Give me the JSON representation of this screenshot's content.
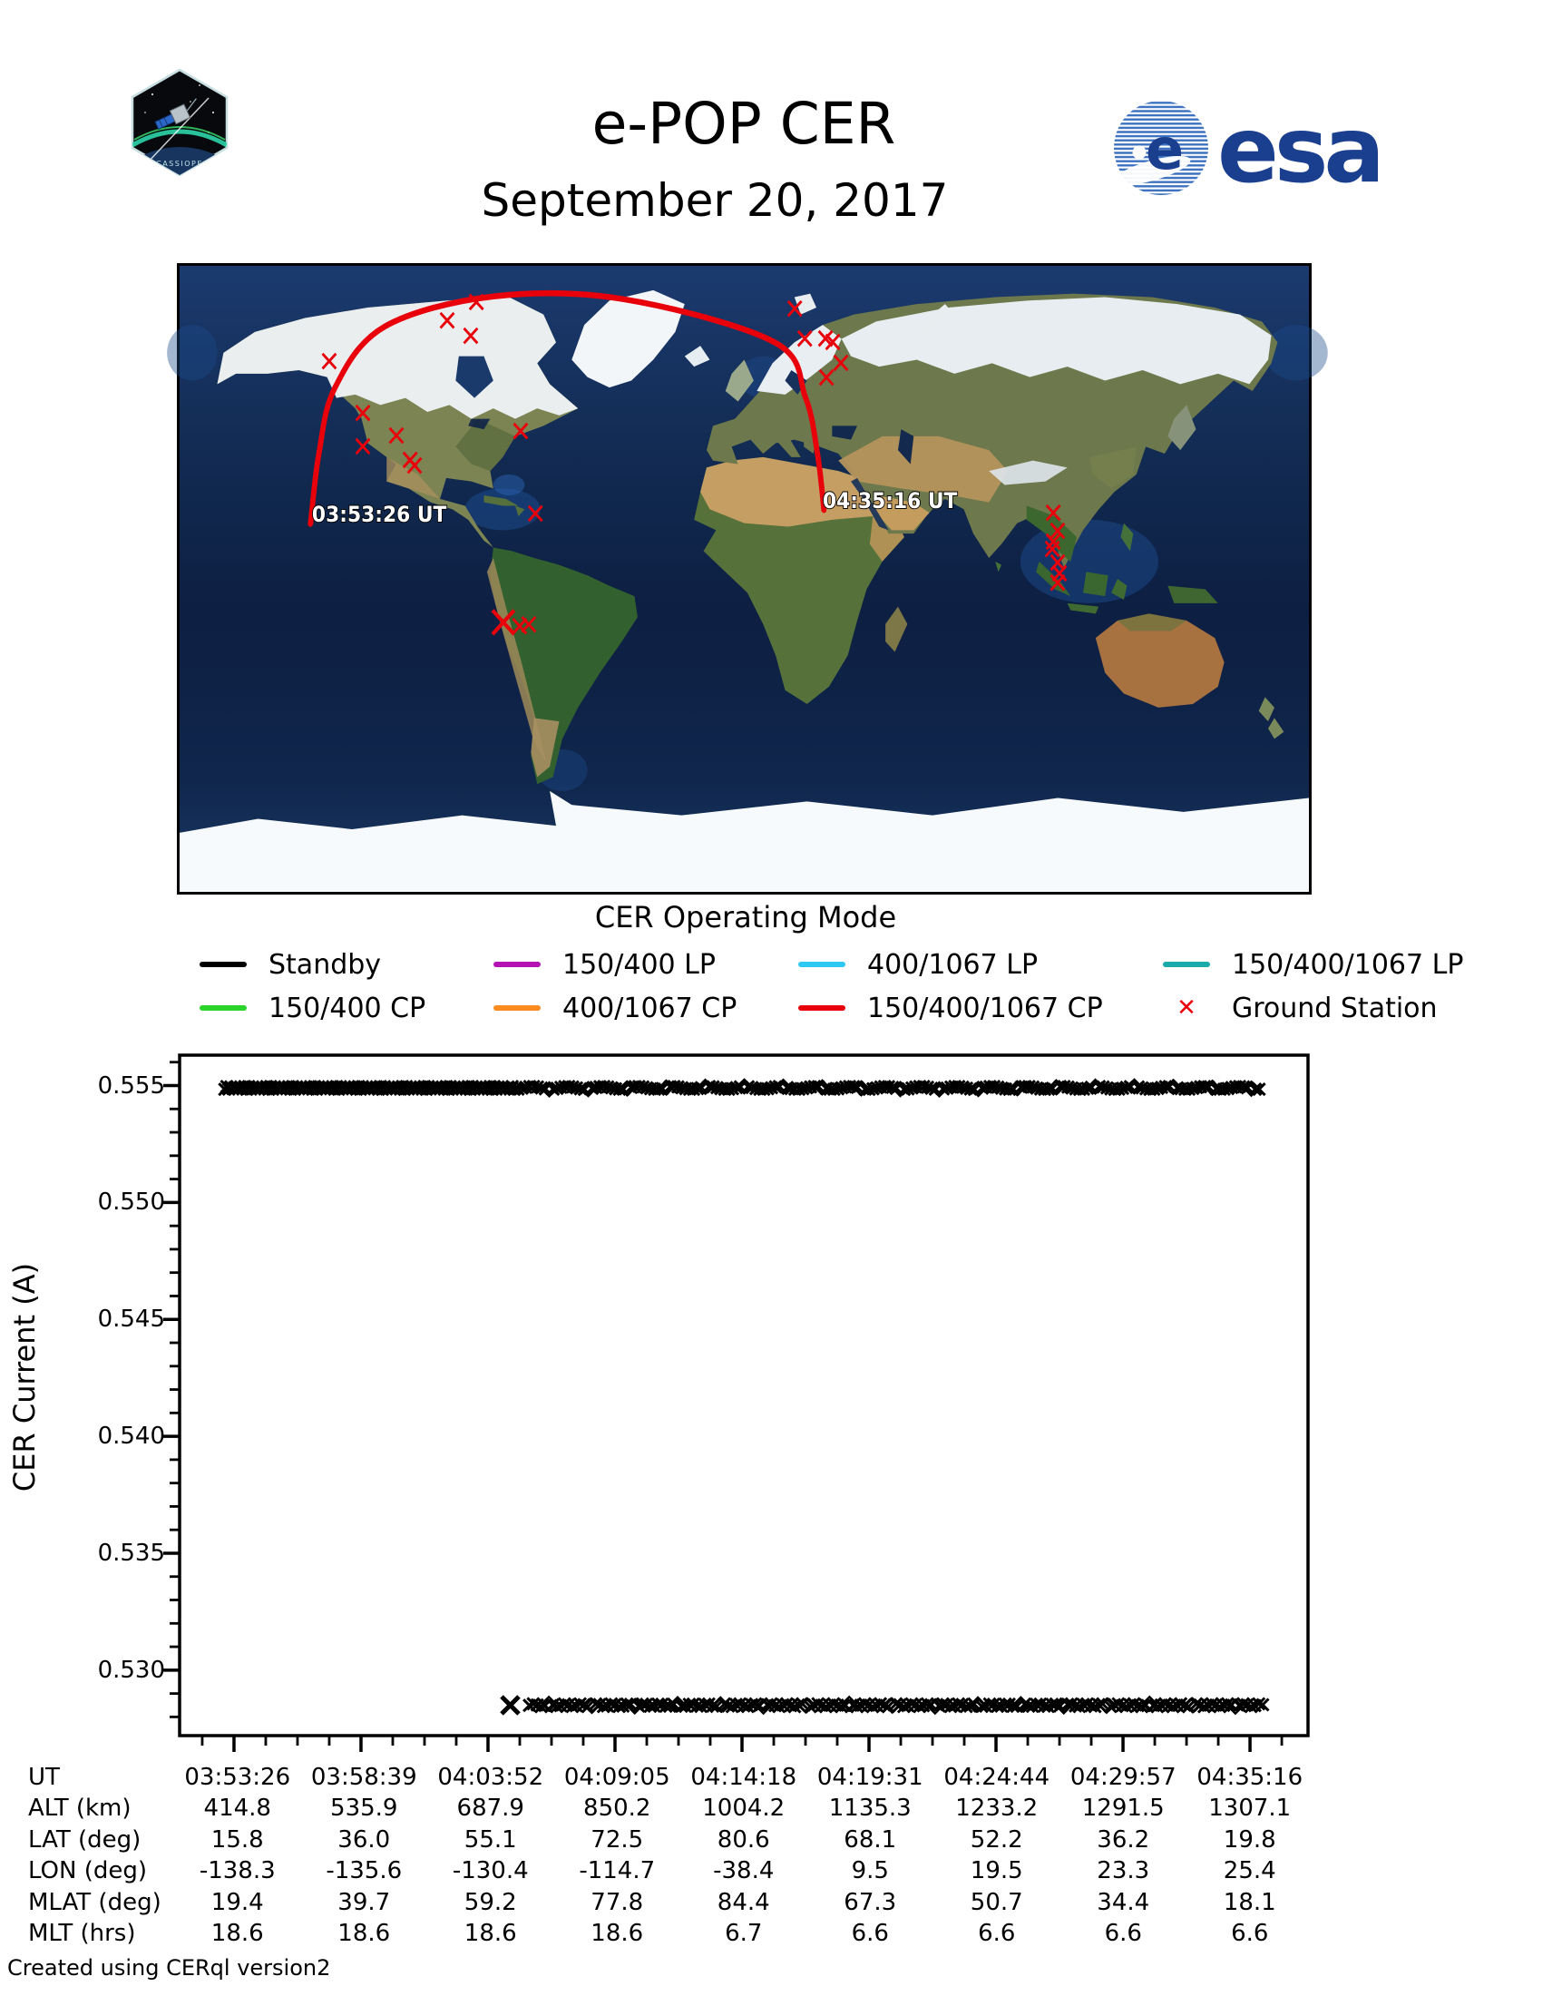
{
  "header": {
    "title": "e-POP CER",
    "subtitle": "September 20, 2017",
    "cassiope_label": "CASSIOPE",
    "esa_label": "esa"
  },
  "map": {
    "start_label": "03:53:26 UT",
    "end_label": "04:35:16 UT",
    "track_color": "#e8000b",
    "station_color": "#e8000b",
    "track_points": [
      [
        41.7,
        74.2
      ],
      [
        44.4,
        54.0
      ],
      [
        49.6,
        34.9
      ],
      [
        65.3,
        17.5
      ],
      [
        100.0,
        8.8
      ],
      [
        141.6,
        9.6
      ],
      [
        189.5,
        21.9
      ],
      [
        199.5,
        37.8
      ],
      [
        203.3,
        53.8
      ],
      [
        205.4,
        70.2
      ]
    ],
    "ground_stations": [
      [
        47.7,
        27.4
      ],
      [
        85.3,
        15.7
      ],
      [
        92.8,
        20.1
      ],
      [
        94.6,
        10.4
      ],
      [
        58.4,
        42.3
      ],
      [
        69.1,
        48.8
      ],
      [
        58.4,
        51.9
      ],
      [
        73.5,
        55.8
      ],
      [
        74.9,
        57.4
      ],
      [
        108.7,
        47.5
      ],
      [
        113.4,
        71.2
      ],
      [
        103.2,
        102.5,
        1.6
      ],
      [
        108.4,
        103.6
      ],
      [
        111.3,
        103.1
      ],
      [
        196.1,
        12.3
      ],
      [
        199.3,
        20.9
      ],
      [
        205.9,
        20.9
      ],
      [
        208.2,
        21.9
      ],
      [
        210.8,
        27.9
      ],
      [
        206.2,
        32.1
      ],
      [
        278.5,
        71.0
      ],
      [
        279.9,
        76.2
      ],
      [
        278.5,
        79.3
      ],
      [
        278.2,
        81.4
      ],
      [
        279.9,
        85.3
      ],
      [
        280.5,
        88.4
      ],
      [
        279.9,
        91.1
      ]
    ]
  },
  "legend": {
    "title": "CER Operating Mode",
    "items": [
      {
        "label": "Standby",
        "color": "#000000",
        "marker": "line"
      },
      {
        "label": "150/400 LP",
        "color": "#b412b4",
        "marker": "line"
      },
      {
        "label": "400/1067 LP",
        "color": "#2fc8f2",
        "marker": "line"
      },
      {
        "label": "150/400/1067 LP",
        "color": "#1ca9a9",
        "marker": "line"
      },
      {
        "label": "150/400 CP",
        "color": "#2bd42b",
        "marker": "line"
      },
      {
        "label": "400/1067 CP",
        "color": "#fb8b1e",
        "marker": "line"
      },
      {
        "label": "150/400/1067 CP",
        "color": "#e8000b",
        "marker": "line"
      },
      {
        "label": "Ground Station",
        "color": "#e8000b",
        "marker": "x"
      }
    ]
  },
  "chart_data": {
    "type": "scatter",
    "title": "",
    "xlabel": "",
    "ylabel": "CER Current (A)",
    "marker": "x",
    "marker_color": "#000000",
    "ylim": [
      0.5272,
      0.5563
    ],
    "ytick_values": [
      0.555,
      0.55,
      0.545,
      0.54,
      0.535,
      0.53
    ],
    "ytick_labels": [
      "0.555",
      "0.550",
      "0.545",
      "0.540",
      "0.535",
      "0.530"
    ],
    "y_minor_step": 0.001,
    "x_tick_labels": [
      "03:53:26",
      "03:58:39",
      "04:03:52",
      "04:09:05",
      "04:14:18",
      "04:19:31",
      "04:24:44",
      "04:29:57",
      "04:35:16"
    ],
    "x_first_tick_frac": 0.0482,
    "x_last_tick_frac": 0.9486,
    "x_minor_per_major": 4,
    "grid": false,
    "series": [
      {
        "name": "upper-band-standby",
        "current_a": 0.5549,
        "x_start_frac": 0.04,
        "x_end_frac": 0.96,
        "dense_until_frac": 0.295
      },
      {
        "name": "lower-band-standby",
        "current_a": 0.5285,
        "x_start_frac": 0.31,
        "x_end_frac": 0.96,
        "lone_point_frac": 0.293
      }
    ]
  },
  "table": {
    "rows": [
      {
        "label": "UT",
        "values": [
          "03:53:26",
          "03:58:39",
          "04:03:52",
          "04:09:05",
          "04:14:18",
          "04:19:31",
          "04:24:44",
          "04:29:57",
          "04:35:16"
        ]
      },
      {
        "label": "ALT (km)",
        "values": [
          "414.8",
          "535.9",
          "687.9",
          "850.2",
          "1004.2",
          "1135.3",
          "1233.2",
          "1291.5",
          "1307.1"
        ]
      },
      {
        "label": "LAT (deg)",
        "values": [
          "15.8",
          "36.0",
          "55.1",
          "72.5",
          "80.6",
          "68.1",
          "52.2",
          "36.2",
          "19.8"
        ]
      },
      {
        "label": "LON (deg)",
        "values": [
          "-138.3",
          "-135.6",
          "-130.4",
          "-114.7",
          "-38.4",
          "9.5",
          "19.5",
          "23.3",
          "25.4"
        ]
      },
      {
        "label": "MLAT (deg)",
        "values": [
          "19.4",
          "39.7",
          "59.2",
          "77.8",
          "84.4",
          "67.3",
          "50.7",
          "34.4",
          "18.1"
        ]
      },
      {
        "label": "MLT (hrs)",
        "values": [
          "18.6",
          "18.6",
          "18.6",
          "18.6",
          "6.7",
          "6.6",
          "6.6",
          "6.6",
          "6.6"
        ]
      }
    ]
  },
  "footer": "Created using CERql version2"
}
